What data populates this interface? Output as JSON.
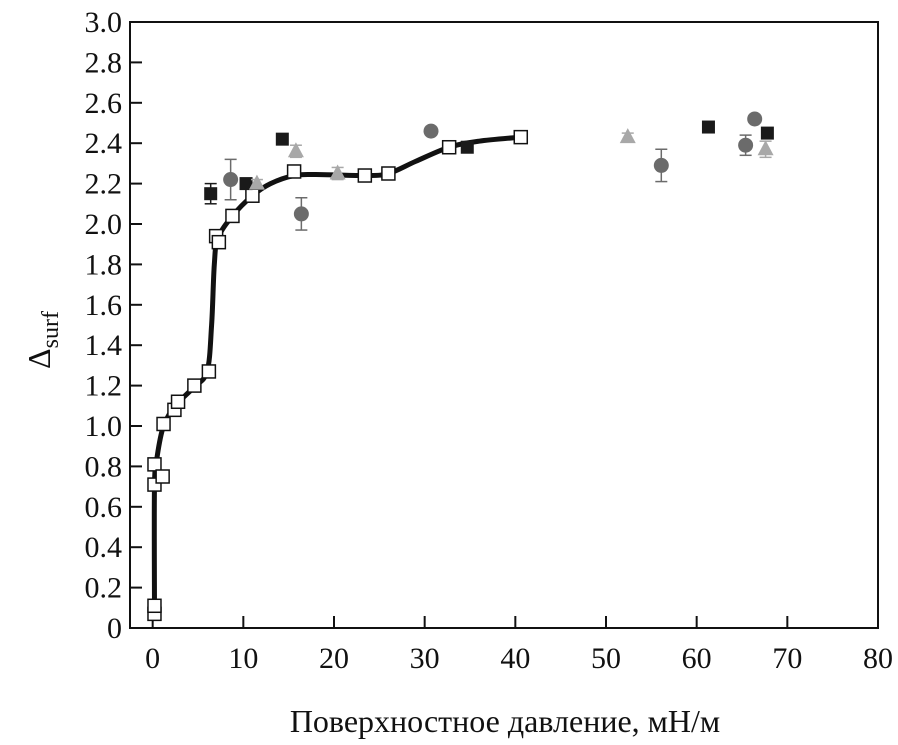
{
  "chart_data": {
    "type": "scatter",
    "title": "",
    "xlabel": "Поверхностное давление, мН/м",
    "ylabel_main": "Δ",
    "ylabel_sub": "surf",
    "xlim": [
      -2.5,
      80
    ],
    "ylim": [
      0,
      3.0
    ],
    "xticks": [
      "0",
      "10",
      "20",
      "30",
      "40",
      "50",
      "60",
      "70",
      "80"
    ],
    "yticks": [
      "0",
      "0.2",
      "0.4",
      "0.6",
      "0.8",
      "1.0",
      "1.2",
      "1.4",
      "1.6",
      "1.8",
      "2.0",
      "2.2",
      "2.4",
      "2.6",
      "2.8",
      "3.0"
    ],
    "grid": false,
    "series": [
      {
        "name": "open-squares",
        "marker": "square-open",
        "color": "#111111",
        "points": [
          [
            0.2,
            0.07
          ],
          [
            0.2,
            0.11
          ],
          [
            0.2,
            0.71
          ],
          [
            0.2,
            0.81
          ],
          [
            1.1,
            0.75
          ],
          [
            1.2,
            1.01
          ],
          [
            2.4,
            1.08
          ],
          [
            2.8,
            1.12
          ],
          [
            4.6,
            1.2
          ],
          [
            6.2,
            1.27
          ],
          [
            7.0,
            1.94
          ],
          [
            7.3,
            1.91
          ],
          [
            8.8,
            2.04
          ],
          [
            11.0,
            2.14
          ],
          [
            15.6,
            2.26
          ],
          [
            23.4,
            2.24
          ],
          [
            26.0,
            2.25
          ],
          [
            32.7,
            2.38
          ],
          [
            40.6,
            2.43
          ]
        ]
      },
      {
        "name": "filled-squares",
        "marker": "square",
        "color": "#1a1a1a",
        "points": [
          [
            6.4,
            2.15,
            0.05
          ],
          [
            10.3,
            2.2,
            0
          ],
          [
            14.3,
            2.42,
            0
          ],
          [
            34.7,
            2.38,
            0
          ],
          [
            61.3,
            2.48,
            0
          ],
          [
            67.8,
            2.45,
            0
          ]
        ]
      },
      {
        "name": "circles",
        "marker": "circle",
        "color": "#6b6b6b",
        "points": [
          [
            8.6,
            2.22,
            0.1
          ],
          [
            16.4,
            2.05,
            0.08
          ],
          [
            30.7,
            2.46,
            0
          ],
          [
            56.1,
            2.29,
            0.08
          ],
          [
            65.4,
            2.39,
            0.05
          ],
          [
            66.4,
            2.52,
            0
          ]
        ]
      },
      {
        "name": "triangles",
        "marker": "triangle",
        "color": "#a8a8a8",
        "points": [
          [
            11.5,
            2.2,
            0.02
          ],
          [
            15.8,
            2.36,
            0.03
          ],
          [
            20.4,
            2.25,
            0.03
          ],
          [
            52.4,
            2.43,
            0.02
          ],
          [
            67.6,
            2.37,
            0.04
          ]
        ]
      }
    ],
    "fit_curve": {
      "color": "#111111",
      "points": [
        [
          0.2,
          0.1
        ],
        [
          0.2,
          0.7
        ],
        [
          0.5,
          0.85
        ],
        [
          1.2,
          1.0
        ],
        [
          2.5,
          1.1
        ],
        [
          4.5,
          1.19
        ],
        [
          6.0,
          1.27
        ],
        [
          6.5,
          1.5
        ],
        [
          6.8,
          1.8
        ],
        [
          7.2,
          1.93
        ],
        [
          8.8,
          2.04
        ],
        [
          11,
          2.14
        ],
        [
          13,
          2.2
        ],
        [
          15.6,
          2.24
        ],
        [
          18,
          2.245
        ],
        [
          23.4,
          2.24
        ],
        [
          26,
          2.25
        ],
        [
          29,
          2.31
        ],
        [
          32.7,
          2.38
        ],
        [
          36,
          2.41
        ],
        [
          40.6,
          2.43
        ]
      ]
    }
  }
}
